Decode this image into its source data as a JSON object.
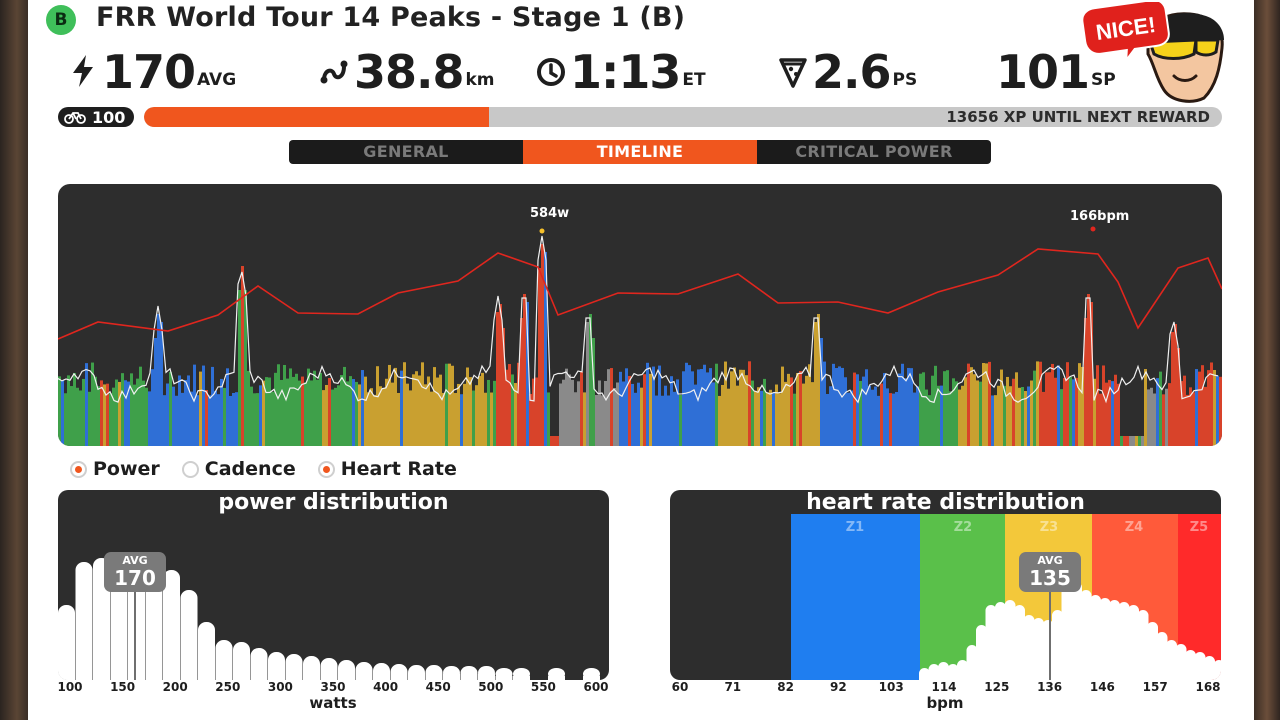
{
  "header": {
    "group_badge": "B",
    "title": "FRR World Tour 14 Peaks - Stage 1 (B)"
  },
  "stats": {
    "power": {
      "value": "170",
      "unit": "AVG",
      "icon": "lightning-icon"
    },
    "distance": {
      "value": "38.8",
      "unit": "km",
      "icon": "route-icon"
    },
    "time": {
      "value": "1:13",
      "unit": "ET",
      "icon": "clock-icon"
    },
    "pizza": {
      "value": "2.6",
      "unit": "PS",
      "icon": "pizza-icon"
    },
    "sport": {
      "value": "101",
      "unit": "SP"
    }
  },
  "avatar": {
    "bubble_text": "NICE!"
  },
  "xp": {
    "level": "100",
    "progress": 0.32,
    "text": "13656 XP UNTIL NEXT REWARD"
  },
  "tabs": [
    {
      "label": "GENERAL",
      "active": false
    },
    {
      "label": "TIMELINE",
      "active": true
    },
    {
      "label": "CRITICAL POWER",
      "active": false
    }
  ],
  "timeline": {
    "peak_power_label": "584w",
    "peak_hr_label": "166bpm"
  },
  "legend": [
    {
      "label": "Power",
      "on": true
    },
    {
      "label": "Cadence",
      "on": false
    },
    {
      "label": "Heart Rate",
      "on": true
    }
  ],
  "power_distribution": {
    "title": "power distribution",
    "avg_label": "AVG",
    "avg_value": "170",
    "x_ticks": [
      "100",
      "150",
      "200",
      "250",
      "300",
      "350",
      "400",
      "450",
      "500",
      "550",
      "600"
    ],
    "x_label": "watts"
  },
  "hr_distribution": {
    "title": "heart rate distribution",
    "avg_label": "AVG",
    "avg_value": "135",
    "zones": [
      "Z1",
      "Z2",
      "Z3",
      "Z4",
      "Z5"
    ],
    "x_ticks": [
      "60",
      "71",
      "82",
      "92",
      "103",
      "114",
      "125",
      "136",
      "146",
      "157",
      "168"
    ],
    "x_label": "bpm"
  },
  "colors": {
    "accent": "#f0561e",
    "panel": "#2d2d2d",
    "zone_blue": "#1f7ef0",
    "zone_green": "#5ac04a",
    "zone_yellow": "#f3c83a",
    "zone_orange": "#ff5a3a",
    "zone_red": "#ff2a2a"
  }
}
